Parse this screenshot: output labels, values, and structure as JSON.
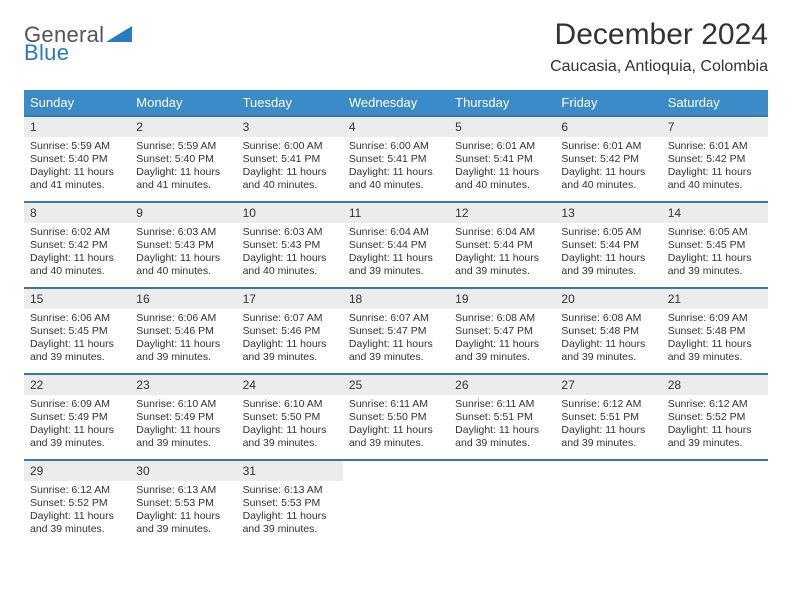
{
  "logo": {
    "line1": "General",
    "line2": "Blue",
    "shape_color": "#2a7abf",
    "line1_color": "#555555",
    "line2_color": "#2a7abf"
  },
  "header": {
    "title": "December 2024",
    "location": "Caucasia, Antioquia, Colombia"
  },
  "colors": {
    "dow_bg": "#3b8bc9",
    "dow_fg": "#ffffff",
    "week_border": "#3b78a8",
    "daynum_bg": "#ececec",
    "text": "#333333",
    "page_bg": "#ffffff"
  },
  "daysOfWeek": [
    "Sunday",
    "Monday",
    "Tuesday",
    "Wednesday",
    "Thursday",
    "Friday",
    "Saturday"
  ],
  "weeks": [
    [
      {
        "n": "1",
        "sr": "Sunrise: 5:59 AM",
        "ss": "Sunset: 5:40 PM",
        "d1": "Daylight: 11 hours",
        "d2": "and 41 minutes."
      },
      {
        "n": "2",
        "sr": "Sunrise: 5:59 AM",
        "ss": "Sunset: 5:40 PM",
        "d1": "Daylight: 11 hours",
        "d2": "and 41 minutes."
      },
      {
        "n": "3",
        "sr": "Sunrise: 6:00 AM",
        "ss": "Sunset: 5:41 PM",
        "d1": "Daylight: 11 hours",
        "d2": "and 40 minutes."
      },
      {
        "n": "4",
        "sr": "Sunrise: 6:00 AM",
        "ss": "Sunset: 5:41 PM",
        "d1": "Daylight: 11 hours",
        "d2": "and 40 minutes."
      },
      {
        "n": "5",
        "sr": "Sunrise: 6:01 AM",
        "ss": "Sunset: 5:41 PM",
        "d1": "Daylight: 11 hours",
        "d2": "and 40 minutes."
      },
      {
        "n": "6",
        "sr": "Sunrise: 6:01 AM",
        "ss": "Sunset: 5:42 PM",
        "d1": "Daylight: 11 hours",
        "d2": "and 40 minutes."
      },
      {
        "n": "7",
        "sr": "Sunrise: 6:01 AM",
        "ss": "Sunset: 5:42 PM",
        "d1": "Daylight: 11 hours",
        "d2": "and 40 minutes."
      }
    ],
    [
      {
        "n": "8",
        "sr": "Sunrise: 6:02 AM",
        "ss": "Sunset: 5:42 PM",
        "d1": "Daylight: 11 hours",
        "d2": "and 40 minutes."
      },
      {
        "n": "9",
        "sr": "Sunrise: 6:03 AM",
        "ss": "Sunset: 5:43 PM",
        "d1": "Daylight: 11 hours",
        "d2": "and 40 minutes."
      },
      {
        "n": "10",
        "sr": "Sunrise: 6:03 AM",
        "ss": "Sunset: 5:43 PM",
        "d1": "Daylight: 11 hours",
        "d2": "and 40 minutes."
      },
      {
        "n": "11",
        "sr": "Sunrise: 6:04 AM",
        "ss": "Sunset: 5:44 PM",
        "d1": "Daylight: 11 hours",
        "d2": "and 39 minutes."
      },
      {
        "n": "12",
        "sr": "Sunrise: 6:04 AM",
        "ss": "Sunset: 5:44 PM",
        "d1": "Daylight: 11 hours",
        "d2": "and 39 minutes."
      },
      {
        "n": "13",
        "sr": "Sunrise: 6:05 AM",
        "ss": "Sunset: 5:44 PM",
        "d1": "Daylight: 11 hours",
        "d2": "and 39 minutes."
      },
      {
        "n": "14",
        "sr": "Sunrise: 6:05 AM",
        "ss": "Sunset: 5:45 PM",
        "d1": "Daylight: 11 hours",
        "d2": "and 39 minutes."
      }
    ],
    [
      {
        "n": "15",
        "sr": "Sunrise: 6:06 AM",
        "ss": "Sunset: 5:45 PM",
        "d1": "Daylight: 11 hours",
        "d2": "and 39 minutes."
      },
      {
        "n": "16",
        "sr": "Sunrise: 6:06 AM",
        "ss": "Sunset: 5:46 PM",
        "d1": "Daylight: 11 hours",
        "d2": "and 39 minutes."
      },
      {
        "n": "17",
        "sr": "Sunrise: 6:07 AM",
        "ss": "Sunset: 5:46 PM",
        "d1": "Daylight: 11 hours",
        "d2": "and 39 minutes."
      },
      {
        "n": "18",
        "sr": "Sunrise: 6:07 AM",
        "ss": "Sunset: 5:47 PM",
        "d1": "Daylight: 11 hours",
        "d2": "and 39 minutes."
      },
      {
        "n": "19",
        "sr": "Sunrise: 6:08 AM",
        "ss": "Sunset: 5:47 PM",
        "d1": "Daylight: 11 hours",
        "d2": "and 39 minutes."
      },
      {
        "n": "20",
        "sr": "Sunrise: 6:08 AM",
        "ss": "Sunset: 5:48 PM",
        "d1": "Daylight: 11 hours",
        "d2": "and 39 minutes."
      },
      {
        "n": "21",
        "sr": "Sunrise: 6:09 AM",
        "ss": "Sunset: 5:48 PM",
        "d1": "Daylight: 11 hours",
        "d2": "and 39 minutes."
      }
    ],
    [
      {
        "n": "22",
        "sr": "Sunrise: 6:09 AM",
        "ss": "Sunset: 5:49 PM",
        "d1": "Daylight: 11 hours",
        "d2": "and 39 minutes."
      },
      {
        "n": "23",
        "sr": "Sunrise: 6:10 AM",
        "ss": "Sunset: 5:49 PM",
        "d1": "Daylight: 11 hours",
        "d2": "and 39 minutes."
      },
      {
        "n": "24",
        "sr": "Sunrise: 6:10 AM",
        "ss": "Sunset: 5:50 PM",
        "d1": "Daylight: 11 hours",
        "d2": "and 39 minutes."
      },
      {
        "n": "25",
        "sr": "Sunrise: 6:11 AM",
        "ss": "Sunset: 5:50 PM",
        "d1": "Daylight: 11 hours",
        "d2": "and 39 minutes."
      },
      {
        "n": "26",
        "sr": "Sunrise: 6:11 AM",
        "ss": "Sunset: 5:51 PM",
        "d1": "Daylight: 11 hours",
        "d2": "and 39 minutes."
      },
      {
        "n": "27",
        "sr": "Sunrise: 6:12 AM",
        "ss": "Sunset: 5:51 PM",
        "d1": "Daylight: 11 hours",
        "d2": "and 39 minutes."
      },
      {
        "n": "28",
        "sr": "Sunrise: 6:12 AM",
        "ss": "Sunset: 5:52 PM",
        "d1": "Daylight: 11 hours",
        "d2": "and 39 minutes."
      }
    ],
    [
      {
        "n": "29",
        "sr": "Sunrise: 6:12 AM",
        "ss": "Sunset: 5:52 PM",
        "d1": "Daylight: 11 hours",
        "d2": "and 39 minutes."
      },
      {
        "n": "30",
        "sr": "Sunrise: 6:13 AM",
        "ss": "Sunset: 5:53 PM",
        "d1": "Daylight: 11 hours",
        "d2": "and 39 minutes."
      },
      {
        "n": "31",
        "sr": "Sunrise: 6:13 AM",
        "ss": "Sunset: 5:53 PM",
        "d1": "Daylight: 11 hours",
        "d2": "and 39 minutes."
      },
      null,
      null,
      null,
      null
    ]
  ]
}
